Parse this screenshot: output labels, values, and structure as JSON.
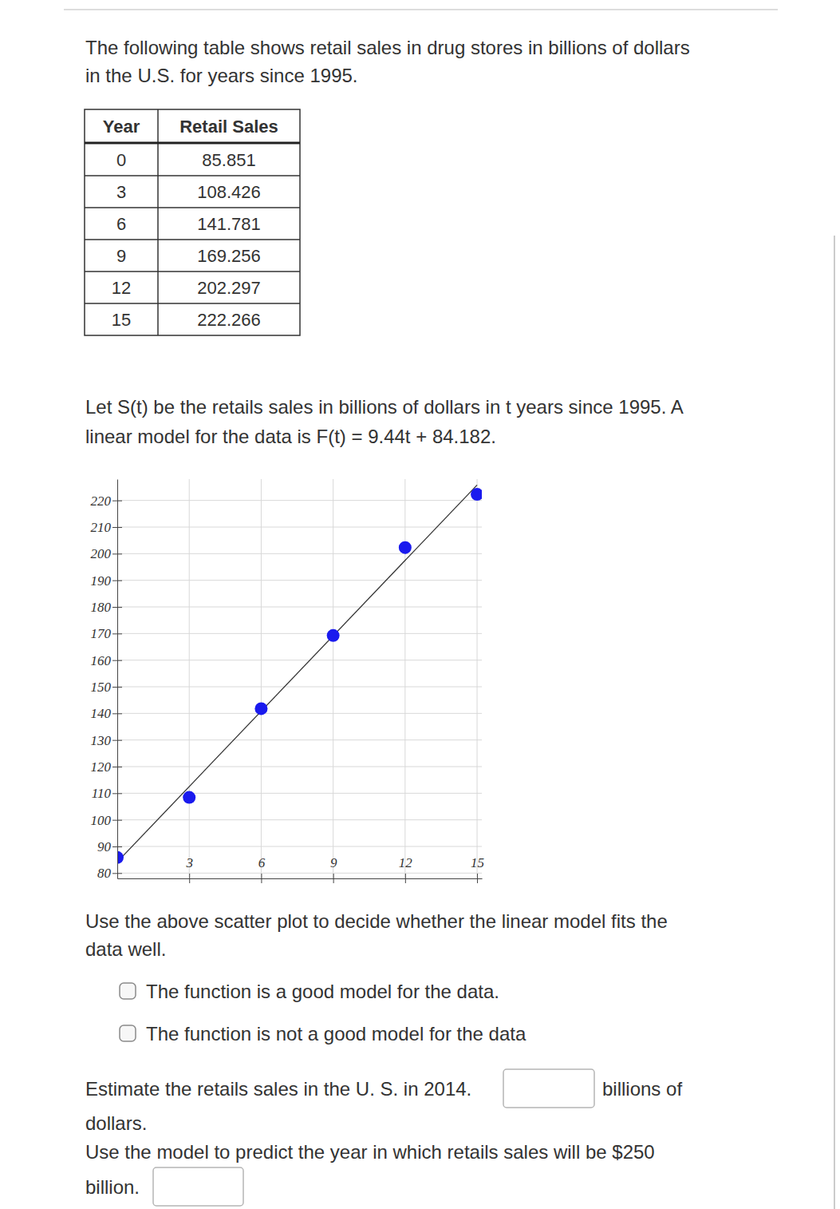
{
  "header": {
    "text": [
      "The following table shows retail sales in drug stores in billions of dollars",
      "in the U.S. for years since 1995."
    ]
  },
  "table": {
    "columns": [
      "Year",
      "Retail Sales"
    ],
    "rows": [
      [
        0,
        85.851
      ],
      [
        3,
        108.426
      ],
      [
        6,
        141.781
      ],
      [
        9,
        169.256
      ],
      [
        12,
        202.297
      ],
      [
        15,
        222.266
      ]
    ]
  },
  "model_text": [
    "Let S(t) be the retails sales in billions of dollars in t years since 1995. A",
    "linear model for the data is F(t) = 9.44t + 84.182."
  ],
  "chart_data": {
    "type": "scatter",
    "series": [
      {
        "type": "scatter",
        "marker": "circle",
        "color": "#1a1aee",
        "x": [
          0,
          3,
          6,
          9,
          12,
          15
        ],
        "values": [
          85.851,
          108.426,
          141.781,
          169.256,
          202.297,
          222.266
        ]
      },
      {
        "type": "line",
        "line_style": "solid",
        "color": "#333333",
        "x": [
          0,
          15
        ],
        "values": [
          84.182,
          225.782
        ]
      }
    ],
    "xlim": [
      0,
      15.2
    ],
    "xticks": [
      3,
      6,
      9,
      12,
      15
    ],
    "ylim": [
      78,
      228
    ],
    "yticks": [
      80,
      90,
      100,
      110,
      120,
      130,
      140,
      150,
      160,
      170,
      180,
      190,
      200,
      210,
      220
    ],
    "grid": true
  },
  "question1": {
    "text": [
      "Use the above scatter plot to decide whether the linear model fits the",
      "data well."
    ],
    "options": [
      "The function is a good model for the data.",
      "The function is not a good model for the data"
    ]
  },
  "question2": {
    "before": "Estimate the retails sales in the U. S. in 2014.",
    "after": [
      "billions of",
      "dollars."
    ]
  },
  "question3": {
    "text": [
      "Use the model to predict the year in which retails sales will be $250",
      "billion."
    ]
  }
}
